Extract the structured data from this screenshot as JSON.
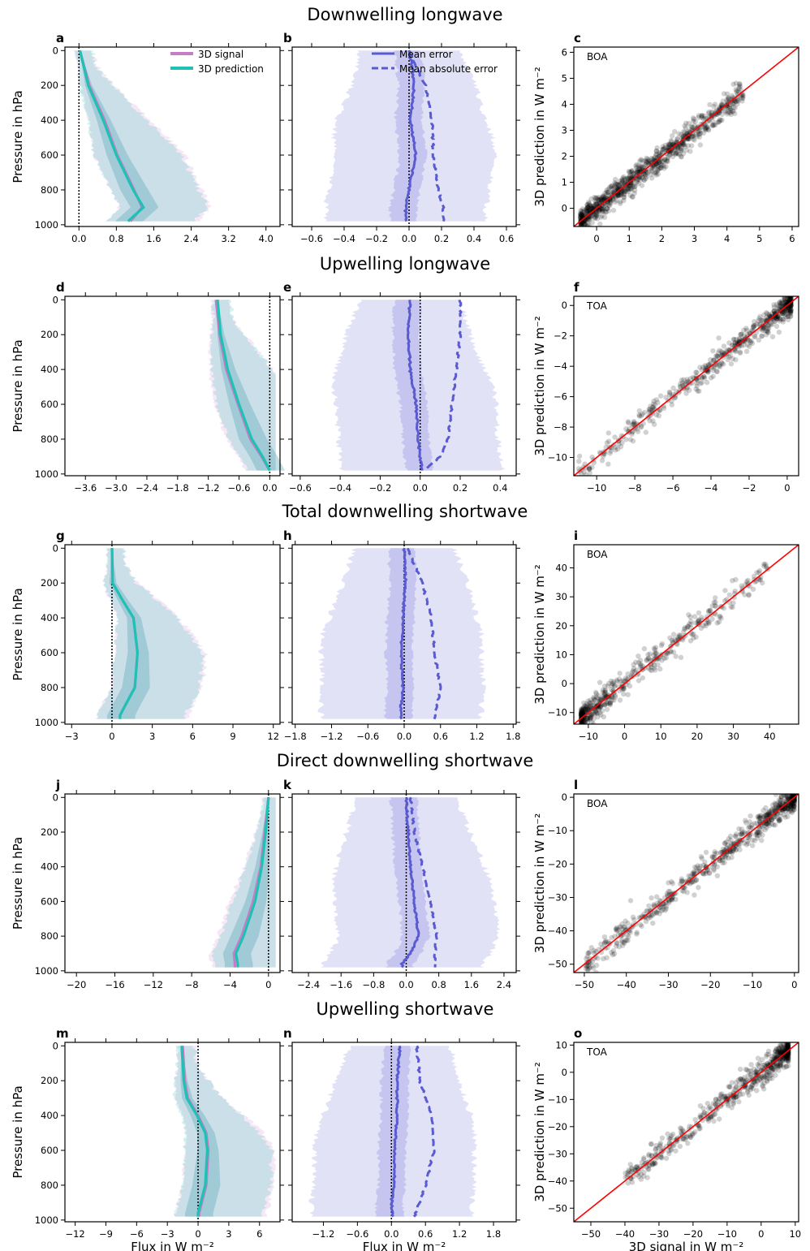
{
  "figure": {
    "rows": [
      {
        "title": "Downwelling longwave",
        "panels": [
          {
            "letter": "a",
            "xticks": [
              "0.0",
              "0.8",
              "1.6",
              "2.4",
              "3.2",
              "4.0"
            ],
            "xlim": [
              -0.3,
              4.3
            ],
            "zero": 0,
            "legend": [
              "3D signal",
              "3D prediction"
            ],
            "ylabel": "Pressure in hPa",
            "xlabel": ""
          },
          {
            "letter": "b",
            "xticks": [
              "−0.6",
              "−0.4",
              "−0.2",
              "0.0",
              "0.2",
              "0.4",
              "0.6"
            ],
            "xlim": [
              -0.72,
              0.66
            ],
            "zero": 0,
            "legend": [
              "Mean error",
              "Mean absolute error"
            ],
            "xlabel": ""
          },
          {
            "letter": "c",
            "annotation": "BOA",
            "xticks": [
              "0",
              "1",
              "2",
              "3",
              "4",
              "5",
              "6"
            ],
            "yticks": [
              "0",
              "1",
              "2",
              "3",
              "4",
              "5",
              "6"
            ],
            "lim": [
              -0.7,
              6.2
            ],
            "ylabel": "3D prediction in W m⁻²",
            "xlabel": ""
          }
        ]
      },
      {
        "title": "Upwelling longwave",
        "panels": [
          {
            "letter": "d",
            "xticks": [
              "−3.6",
              "−3.0",
              "−2.4",
              "−1.8",
              "−1.2",
              "−0.6",
              "0.0"
            ],
            "xlim": [
              -4.0,
              0.2
            ],
            "zero": 0,
            "ylabel": "Pressure in hPa",
            "xlabel": ""
          },
          {
            "letter": "e",
            "xticks": [
              "−0.6",
              "−0.4",
              "−0.2",
              "0.0",
              "0.2",
              "0.4"
            ],
            "xlim": [
              -0.64,
              0.48
            ],
            "zero": 0,
            "xlabel": ""
          },
          {
            "letter": "f",
            "annotation": "TOA",
            "xticks": [
              "−10",
              "−8",
              "−6",
              "−4",
              "−2",
              "0"
            ],
            "yticks": [
              "−10",
              "−8",
              "−6",
              "−4",
              "−2",
              "0"
            ],
            "lim": [
              -11.2,
              0.6
            ],
            "ylabel": "3D prediction in W m⁻²",
            "xlabel": ""
          }
        ]
      },
      {
        "title": "Total downwelling shortwave",
        "panels": [
          {
            "letter": "g",
            "xticks": [
              "−3",
              "0",
              "3",
              "6",
              "9",
              "12"
            ],
            "xlim": [
              -3.5,
              12.5
            ],
            "zero": 0,
            "ylabel": "Pressure in hPa",
            "xlabel": ""
          },
          {
            "letter": "h",
            "xticks": [
              "−1.8",
              "−1.2",
              "−0.6",
              "0.0",
              "0.6",
              "1.2",
              "1.8"
            ],
            "xlim": [
              -1.85,
              1.85
            ],
            "zero": 0,
            "xlabel": ""
          },
          {
            "letter": "i",
            "annotation": "BOA",
            "xticks": [
              "−10",
              "0",
              "10",
              "20",
              "30",
              "40"
            ],
            "yticks": [
              "−10",
              "0",
              "10",
              "20",
              "30",
              "40"
            ],
            "lim": [
              -14,
              48
            ],
            "ylabel": "3D prediction in W m⁻²",
            "xlabel": ""
          }
        ]
      },
      {
        "title": "Direct downwelling shortwave",
        "panels": [
          {
            "letter": "j",
            "xticks": [
              "−20",
              "−16",
              "−12",
              "−8",
              "−4",
              "0"
            ],
            "xlim": [
              -21.2,
              1.2
            ],
            "zero": 0,
            "ylabel": "Pressure in hPa",
            "xlabel": ""
          },
          {
            "letter": "k",
            "xticks": [
              "−2.4",
              "−1.6",
              "−0.8",
              "0.0",
              "0.8",
              "1.6",
              "2.4"
            ],
            "xlim": [
              -2.8,
              2.7
            ],
            "zero": 0,
            "xlabel": ""
          },
          {
            "letter": "l",
            "annotation": "BOA",
            "xticks": [
              "−50",
              "−40",
              "−30",
              "−20",
              "−10",
              "0"
            ],
            "yticks": [
              "−50",
              "−40",
              "−30",
              "−20",
              "−10",
              "0"
            ],
            "lim": [
              -52.5,
              1
            ],
            "ylabel": "3D prediction in W m⁻²",
            "xlabel": ""
          }
        ]
      },
      {
        "title": "Upwelling shortwave",
        "panels": [
          {
            "letter": "m",
            "xticks": [
              "−12",
              "−9",
              "−6",
              "−3",
              "0",
              "3",
              "6"
            ],
            "xlim": [
              -13,
              8
            ],
            "zero": 0,
            "ylabel": "Pressure in hPa",
            "xlabel": "Flux in W m⁻²"
          },
          {
            "letter": "n",
            "xticks": [
              "−1.2",
              "−0.6",
              "0.0",
              "0.6",
              "1.2",
              "1.8"
            ],
            "xlim": [
              -1.75,
              2.2
            ],
            "zero": 0,
            "xlabel": "Flux in W m⁻²"
          },
          {
            "letter": "o",
            "annotation": "TOA",
            "xticks": [
              "−50",
              "−40",
              "−30",
              "−20",
              "−10",
              "0",
              "10"
            ],
            "yticks": [
              "−50",
              "−40",
              "−30",
              "−20",
              "−10",
              "0",
              "10"
            ],
            "lim": [
              -55,
              11
            ],
            "ylabel": "3D prediction in W m⁻²",
            "xlabel": "3D signal in W m⁻²"
          }
        ]
      }
    ],
    "pressure_ticks": [
      "0",
      "200",
      "400",
      "600",
      "800",
      "1000"
    ],
    "colors": {
      "signal": "#c77cc6",
      "prediction": "#1ec2b4",
      "error": "#5a5bd0",
      "error_band": "#d6d6f4",
      "one_to_one": "#ff0000"
    }
  },
  "chart_data": [
    {
      "panel": "a",
      "type": "area",
      "ylim": [
        1010,
        -20
      ],
      "pressure": [
        0,
        200,
        400,
        600,
        800,
        900,
        980
      ],
      "series": [
        {
          "name": "3D signal",
          "values": [
            0.02,
            0.22,
            0.55,
            0.82,
            1.18,
            1.35,
            1.1
          ]
        },
        {
          "name": "3D prediction",
          "values": [
            0.02,
            0.2,
            0.52,
            0.8,
            1.16,
            1.38,
            1.05
          ]
        }
      ]
    },
    {
      "panel": "b",
      "type": "area",
      "ylim": [
        1010,
        -20
      ],
      "pressure": [
        0,
        100,
        200,
        400,
        600,
        800,
        900,
        980
      ],
      "series": [
        {
          "name": "Mean error",
          "values": [
            0.0,
            0.02,
            0.03,
            0.01,
            0.04,
            0.0,
            -0.02,
            -0.02
          ]
        },
        {
          "name": "Mean absolute error",
          "values": [
            0.0,
            0.05,
            0.1,
            0.14,
            0.15,
            0.18,
            0.21,
            0.21
          ]
        }
      ]
    },
    {
      "panel": "c",
      "type": "scatter",
      "xlim": [
        -0.7,
        6.2
      ],
      "ylim": [
        -0.7,
        6.2
      ],
      "cloud": {
        "x_range": [
          -0.5,
          4.5
        ],
        "slope": 0.98
      }
    },
    {
      "panel": "d",
      "type": "area",
      "ylim": [
        1010,
        -20
      ],
      "pressure": [
        0,
        200,
        400,
        600,
        800,
        900,
        980
      ],
      "series": [
        {
          "name": "3D signal",
          "values": [
            -1.05,
            -0.98,
            -0.85,
            -0.62,
            -0.38,
            -0.16,
            0.0
          ]
        },
        {
          "name": "3D prediction",
          "values": [
            -1.02,
            -0.96,
            -0.82,
            -0.6,
            -0.35,
            -0.14,
            0.0
          ]
        }
      ]
    },
    {
      "panel": "e",
      "type": "area",
      "ylim": [
        1010,
        -20
      ],
      "pressure": [
        0,
        200,
        400,
        600,
        800,
        900,
        980
      ],
      "series": [
        {
          "name": "Mean error",
          "values": [
            -0.05,
            -0.06,
            -0.05,
            -0.02,
            -0.01,
            0.0,
            0.01
          ]
        },
        {
          "name": "Mean absolute error",
          "values": [
            0.2,
            0.2,
            0.18,
            0.16,
            0.14,
            0.1,
            0.02
          ]
        }
      ]
    },
    {
      "panel": "f",
      "type": "scatter",
      "xlim": [
        -11.2,
        0.6
      ],
      "ylim": [
        -11.2,
        0.6
      ],
      "cloud": {
        "x_range": [
          -11,
          0.2
        ],
        "slope": 1.0
      }
    },
    {
      "panel": "g",
      "type": "area",
      "ylim": [
        1010,
        -20
      ],
      "pressure": [
        0,
        200,
        300,
        400,
        600,
        800,
        900,
        960
      ],
      "series": [
        {
          "name": "3D signal",
          "values": [
            0,
            0.05,
            0.8,
            1.6,
            1.9,
            1.7,
            1.0,
            0.6
          ]
        },
        {
          "name": "3D prediction",
          "values": [
            0,
            0.05,
            0.8,
            1.6,
            1.9,
            1.7,
            1.0,
            0.6
          ]
        }
      ]
    },
    {
      "panel": "h",
      "type": "area",
      "ylim": [
        1010,
        -20
      ],
      "pressure": [
        0,
        200,
        400,
        600,
        800,
        900,
        960
      ],
      "series": [
        {
          "name": "Mean error",
          "values": [
            0.0,
            0.02,
            -0.02,
            -0.05,
            -0.02,
            -0.05,
            -0.05
          ]
        },
        {
          "name": "Mean absolute error",
          "values": [
            0.05,
            0.3,
            0.45,
            0.5,
            0.6,
            0.55,
            0.5
          ]
        }
      ]
    },
    {
      "panel": "i",
      "type": "scatter",
      "xlim": [
        -14,
        48
      ],
      "ylim": [
        -14,
        48
      ],
      "cloud": {
        "x_range": [
          -12,
          40
        ],
        "slope": 1.0
      }
    },
    {
      "panel": "j",
      "type": "area",
      "ylim": [
        1010,
        -20
      ],
      "pressure": [
        0,
        200,
        400,
        600,
        800,
        900,
        960
      ],
      "series": [
        {
          "name": "3D signal",
          "values": [
            0,
            -0.4,
            -0.8,
            -1.6,
            -2.8,
            -3.6,
            -3.5
          ]
        },
        {
          "name": "3D prediction",
          "values": [
            0,
            -0.3,
            -0.7,
            -1.4,
            -2.6,
            -3.4,
            -3.2
          ]
        }
      ]
    },
    {
      "panel": "k",
      "type": "area",
      "ylim": [
        1010,
        -20
      ],
      "pressure": [
        0,
        200,
        400,
        600,
        800,
        900,
        960
      ],
      "series": [
        {
          "name": "Mean error",
          "values": [
            0.0,
            0.05,
            0.1,
            0.2,
            0.3,
            0.1,
            -0.1
          ]
        },
        {
          "name": "Mean absolute error",
          "values": [
            0.1,
            0.2,
            0.4,
            0.6,
            0.75,
            0.7,
            0.7
          ]
        }
      ]
    },
    {
      "panel": "l",
      "type": "scatter",
      "xlim": [
        -52.5,
        1
      ],
      "ylim": [
        -52.5,
        1
      ],
      "cloud": {
        "x_range": [
          -50,
          0
        ],
        "slope": 1.0
      }
    },
    {
      "panel": "m",
      "type": "area",
      "ylim": [
        1010,
        -20
      ],
      "pressure": [
        0,
        200,
        300,
        400,
        500,
        600,
        800,
        960
      ],
      "series": [
        {
          "name": "3D signal",
          "values": [
            -1.5,
            -1.3,
            -1.0,
            0.0,
            0.8,
            1.0,
            0.8,
            0.1
          ]
        },
        {
          "name": "3D prediction",
          "values": [
            -1.6,
            -1.4,
            -1.1,
            -0.1,
            0.7,
            0.9,
            0.7,
            0.0
          ]
        }
      ]
    },
    {
      "panel": "n",
      "type": "area",
      "ylim": [
        1010,
        -20
      ],
      "pressure": [
        0,
        200,
        400,
        600,
        800,
        900,
        980
      ],
      "series": [
        {
          "name": "Mean error",
          "values": [
            0.15,
            0.1,
            0.1,
            0.05,
            0.05,
            0.0,
            0.02
          ]
        },
        {
          "name": "Mean absolute error",
          "values": [
            0.45,
            0.5,
            0.7,
            0.75,
            0.6,
            0.5,
            0.4
          ]
        }
      ]
    },
    {
      "panel": "o",
      "type": "scatter",
      "xlim": [
        -55,
        11
      ],
      "ylim": [
        -55,
        11
      ],
      "cloud": {
        "x_range": [
          -40,
          8
        ],
        "slope": 1.0
      }
    }
  ]
}
